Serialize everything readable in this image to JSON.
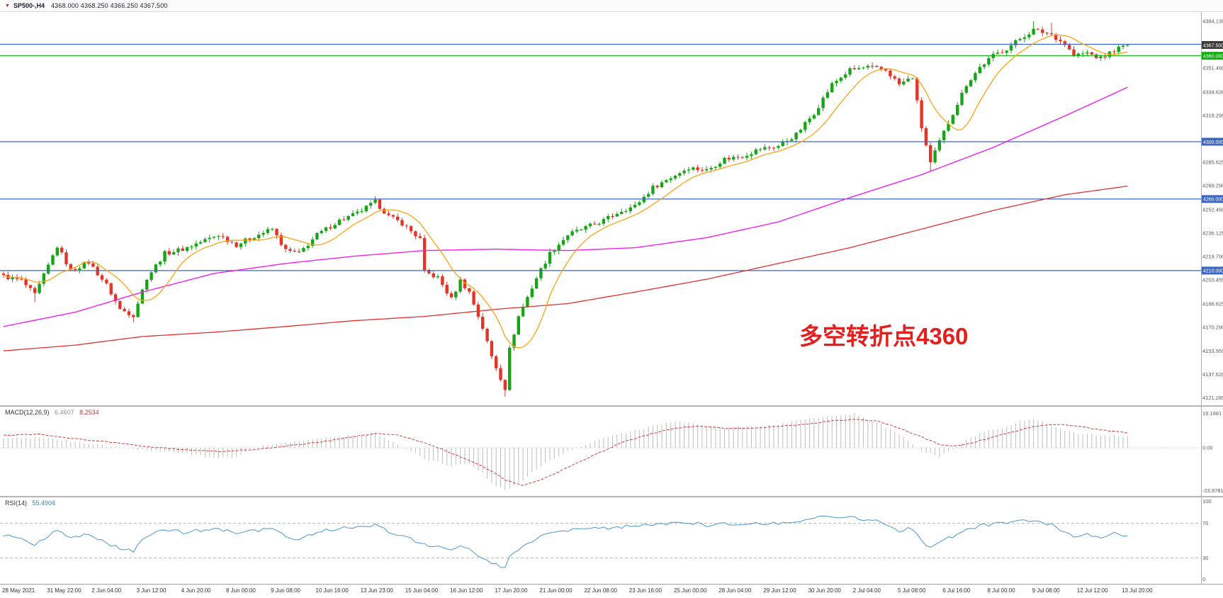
{
  "header": {
    "dropdown_icon": "▼",
    "symbol": "SP500-,H4",
    "ohlc": "4368.000 4368.250 4366.250 4367.500"
  },
  "annotation": {
    "text": "多空转折点4360",
    "color": "#e32020"
  },
  "chart_data": {
    "type": "candlestick",
    "title": "SP500- H4 candlestick chart with MACD and RSI",
    "symbol": "SP500-",
    "timeframe": "H4",
    "ohlc_current": {
      "open": 4368.0,
      "high": 4368.25,
      "low": 4366.25,
      "close": 4367.5
    },
    "price_axis": {
      "range": {
        "top": 4391.0,
        "bottom": 4116.0
      },
      "ticks": [
        4384.13,
        4351.46,
        4334.63,
        4318.295,
        4285.625,
        4269.29,
        4252.46,
        4236.125,
        4219.79,
        4203.455,
        4186.625,
        4170.29,
        4153.955,
        4137.62,
        4121.285
      ],
      "tick_labels": [
        "4384.130",
        "4351.460",
        "4334.630",
        "4318.295",
        "4285.625",
        "4269.290",
        "4252.460",
        "4236.125",
        "4219.790",
        "4203.455",
        "4186.625",
        "4170.290",
        "4153.955",
        "4137.620",
        "4121.285"
      ],
      "special_labels": [
        {
          "text": "4367.500",
          "price": 4367.5,
          "bg": "#3a3a3a"
        },
        {
          "text": "4360.000",
          "price": 4360.0,
          "bg": "#00b400"
        },
        {
          "text": "4300.000",
          "price": 4300.0,
          "bg": "#3a66c8"
        },
        {
          "text": "4260.000",
          "price": 4260.0,
          "bg": "#3a66c8"
        },
        {
          "text": "4210.000",
          "price": 4210.0,
          "bg": "#3a66c8"
        }
      ]
    },
    "levels": [
      {
        "price": 4368.0,
        "color": "#3a66c8"
      },
      {
        "price": 4360.0,
        "color": "#00b400"
      },
      {
        "price": 4300.0,
        "color": "#3a66c8"
      },
      {
        "price": 4260.0,
        "color": "#3a66c8"
      },
      {
        "price": 4210.0,
        "color": "#3a66c8"
      }
    ],
    "candles": {
      "count": 252,
      "up_color": "#17a517",
      "down_color": "#e33428",
      "noise": 1.6,
      "first_open": 4208
    },
    "price_path": [
      [
        0,
        4206
      ],
      [
        4,
        4203
      ],
      [
        7,
        4193
      ],
      [
        12,
        4227
      ],
      [
        15,
        4210
      ],
      [
        19,
        4216
      ],
      [
        23,
        4200
      ],
      [
        26,
        4183
      ],
      [
        29,
        4179
      ],
      [
        32,
        4205
      ],
      [
        36,
        4222
      ],
      [
        40,
        4225
      ],
      [
        44,
        4230
      ],
      [
        48,
        4235
      ],
      [
        52,
        4228
      ],
      [
        56,
        4234
      ],
      [
        60,
        4239
      ],
      [
        63,
        4224
      ],
      [
        66,
        4222
      ],
      [
        70,
        4235
      ],
      [
        75,
        4245
      ],
      [
        79,
        4250
      ],
      [
        83,
        4258
      ],
      [
        86,
        4248
      ],
      [
        89,
        4243
      ],
      [
        93,
        4232
      ],
      [
        94,
        4209
      ],
      [
        97,
        4205
      ],
      [
        100,
        4190
      ],
      [
        102,
        4203
      ],
      [
        104,
        4195
      ],
      [
        107,
        4170
      ],
      [
        109,
        4150
      ],
      [
        111,
        4135
      ],
      [
        112,
        4128
      ],
      [
        113,
        4155
      ],
      [
        115,
        4178
      ],
      [
        119,
        4205
      ],
      [
        122,
        4222
      ],
      [
        126,
        4235
      ],
      [
        130,
        4240
      ],
      [
        134,
        4245
      ],
      [
        138,
        4252
      ],
      [
        141,
        4255
      ],
      [
        145,
        4268
      ],
      [
        149,
        4275
      ],
      [
        153,
        4282
      ],
      [
        157,
        4280
      ],
      [
        161,
        4288
      ],
      [
        165,
        4290
      ],
      [
        169,
        4295
      ],
      [
        173,
        4297
      ],
      [
        177,
        4305
      ],
      [
        181,
        4320
      ],
      [
        185,
        4340
      ],
      [
        189,
        4350
      ],
      [
        193,
        4352
      ],
      [
        197,
        4350
      ],
      [
        200,
        4340
      ],
      [
        203,
        4345
      ],
      [
        205,
        4310
      ],
      [
        207,
        4285
      ],
      [
        209,
        4300
      ],
      [
        212,
        4320
      ],
      [
        215,
        4340
      ],
      [
        218,
        4352
      ],
      [
        221,
        4360
      ],
      [
        224,
        4365
      ],
      [
        227,
        4372
      ],
      [
        230,
        4378
      ],
      [
        234,
        4375
      ],
      [
        237,
        4368
      ],
      [
        239,
        4360
      ],
      [
        242,
        4362
      ],
      [
        245,
        4358
      ],
      [
        248,
        4364
      ],
      [
        251,
        4367.5
      ]
    ],
    "wick_overrides": {
      "7": {
        "low": 4188
      },
      "29": {
        "low": 4174
      },
      "83": {
        "high": 4262
      },
      "112": {
        "low": 4122
      },
      "207": {
        "low": 4279
      },
      "230": {
        "high": 4384.1
      },
      "234": {
        "high": 4383.0
      },
      "251": {
        "high": 4368.3,
        "low": 4366.2
      }
    },
    "ma_fast": {
      "name": "MA fast",
      "color": "#ffa216",
      "period": 10
    },
    "ma_medium": {
      "name": "MA medium",
      "color": "#ee22ee",
      "path": [
        [
          0,
          4171
        ],
        [
          16,
          4181
        ],
        [
          31,
          4195
        ],
        [
          47,
          4208
        ],
        [
          63,
          4215
        ],
        [
          78,
          4220
        ],
        [
          94,
          4224
        ],
        [
          110,
          4225
        ],
        [
          126,
          4224
        ],
        [
          141,
          4226
        ],
        [
          157,
          4233
        ],
        [
          173,
          4244
        ],
        [
          189,
          4261
        ],
        [
          205,
          4277
        ],
        [
          221,
          4296
        ],
        [
          237,
          4318
        ],
        [
          251,
          4338
        ]
      ]
    },
    "ma_slow": {
      "name": "MA slow",
      "color": "#e03030",
      "path": [
        [
          0,
          4154
        ],
        [
          16,
          4158
        ],
        [
          31,
          4164
        ],
        [
          47,
          4167
        ],
        [
          63,
          4171
        ],
        [
          78,
          4175
        ],
        [
          94,
          4178
        ],
        [
          110,
          4183
        ],
        [
          126,
          4187
        ],
        [
          141,
          4195
        ],
        [
          157,
          4204
        ],
        [
          173,
          4215
        ],
        [
          189,
          4226
        ],
        [
          205,
          4239
        ],
        [
          221,
          4252
        ],
        [
          237,
          4263
        ],
        [
          251,
          4269
        ]
      ]
    },
    "macd": {
      "label": "MACD(12,26,9)",
      "main": "6.4607",
      "signal": "8.2534",
      "range": [
        -27,
        23
      ],
      "hist_color": "#bdbdbd",
      "signal_color": "#d23f3f",
      "scale_labels": [
        {
          "text": "19.1681",
          "value": 19.1681
        },
        {
          "text": "0.00",
          "value": 0
        },
        {
          "text": "-23.9781",
          "value": -23.9781
        }
      ],
      "hist": [
        [
          0,
          5
        ],
        [
          8,
          6
        ],
        [
          16,
          3
        ],
        [
          24,
          1
        ],
        [
          31,
          -1
        ],
        [
          40,
          -3
        ],
        [
          48,
          -6
        ],
        [
          52,
          -5
        ],
        [
          56,
          0
        ],
        [
          63,
          3
        ],
        [
          70,
          5
        ],
        [
          78,
          7
        ],
        [
          83,
          8
        ],
        [
          88,
          2
        ],
        [
          94,
          -6
        ],
        [
          100,
          -10
        ],
        [
          104,
          -9
        ],
        [
          107,
          -14
        ],
        [
          109,
          -20
        ],
        [
          112,
          -24
        ],
        [
          116,
          -18
        ],
        [
          120,
          -10
        ],
        [
          126,
          -2
        ],
        [
          132,
          4
        ],
        [
          138,
          8
        ],
        [
          145,
          12
        ],
        [
          150,
          15
        ],
        [
          155,
          13
        ],
        [
          161,
          11
        ],
        [
          167,
          12
        ],
        [
          173,
          13
        ],
        [
          179,
          16
        ],
        [
          185,
          18
        ],
        [
          190,
          19.17
        ],
        [
          195,
          14
        ],
        [
          200,
          8
        ],
        [
          205,
          -2
        ],
        [
          209,
          -5
        ],
        [
          212,
          -1
        ],
        [
          215,
          4
        ],
        [
          218,
          8
        ],
        [
          221,
          10
        ],
        [
          224,
          12
        ],
        [
          227,
          15
        ],
        [
          230,
          16
        ],
        [
          234,
          13
        ],
        [
          237,
          10
        ],
        [
          240,
          8
        ],
        [
          245,
          7
        ],
        [
          251,
          6.46
        ]
      ],
      "signal_path": [
        [
          0,
          7
        ],
        [
          8,
          7.5
        ],
        [
          16,
          5
        ],
        [
          24,
          3
        ],
        [
          31,
          1
        ],
        [
          40,
          -1
        ],
        [
          48,
          -2
        ],
        [
          56,
          -1
        ],
        [
          63,
          1
        ],
        [
          70,
          3
        ],
        [
          78,
          6
        ],
        [
          83,
          8
        ],
        [
          88,
          7
        ],
        [
          94,
          3
        ],
        [
          100,
          -3
        ],
        [
          104,
          -7
        ],
        [
          109,
          -13
        ],
        [
          112,
          -18
        ],
        [
          116,
          -21
        ],
        [
          120,
          -18
        ],
        [
          126,
          -11
        ],
        [
          132,
          -4
        ],
        [
          138,
          3
        ],
        [
          145,
          8
        ],
        [
          150,
          11
        ],
        [
          155,
          12
        ],
        [
          161,
          11
        ],
        [
          167,
          11
        ],
        [
          173,
          12
        ],
        [
          179,
          13
        ],
        [
          185,
          15
        ],
        [
          190,
          16
        ],
        [
          195,
          15
        ],
        [
          200,
          11
        ],
        [
          205,
          6
        ],
        [
          209,
          2
        ],
        [
          212,
          1
        ],
        [
          215,
          2
        ],
        [
          218,
          4
        ],
        [
          221,
          6
        ],
        [
          224,
          8
        ],
        [
          227,
          10
        ],
        [
          230,
          12
        ],
        [
          234,
          13
        ],
        [
          237,
          13
        ],
        [
          240,
          12
        ],
        [
          245,
          10
        ],
        [
          251,
          8.25
        ]
      ]
    },
    "rsi": {
      "label": "RSI(14)",
      "value": "55.4904",
      "color": "#4b96d1",
      "range": [
        0,
        100
      ],
      "levels": [
        70,
        30
      ],
      "scale_labels": [
        {
          "text": "100",
          "value": 100
        },
        {
          "text": "70",
          "value": 70
        },
        {
          "text": "30",
          "value": 30
        },
        {
          "text": "0",
          "value": 0
        }
      ],
      "path": [
        [
          0,
          57
        ],
        [
          4,
          52
        ],
        [
          7,
          44
        ],
        [
          12,
          63
        ],
        [
          15,
          52
        ],
        [
          19,
          57
        ],
        [
          23,
          48
        ],
        [
          26,
          40
        ],
        [
          29,
          38
        ],
        [
          32,
          55
        ],
        [
          36,
          62
        ],
        [
          40,
          60
        ],
        [
          44,
          62
        ],
        [
          48,
          64
        ],
        [
          52,
          58
        ],
        [
          56,
          61
        ],
        [
          60,
          64
        ],
        [
          63,
          54
        ],
        [
          66,
          52
        ],
        [
          70,
          60
        ],
        [
          75,
          64
        ],
        [
          79,
          66
        ],
        [
          83,
          68
        ],
        [
          86,
          60
        ],
        [
          89,
          56
        ],
        [
          94,
          45
        ],
        [
          97,
          44
        ],
        [
          100,
          38
        ],
        [
          102,
          45
        ],
        [
          104,
          41
        ],
        [
          107,
          30
        ],
        [
          109,
          24
        ],
        [
          112,
          19
        ],
        [
          113,
          30
        ],
        [
          115,
          40
        ],
        [
          119,
          52
        ],
        [
          122,
          58
        ],
        [
          126,
          62
        ],
        [
          130,
          63
        ],
        [
          134,
          64
        ],
        [
          138,
          66
        ],
        [
          141,
          66
        ],
        [
          145,
          69
        ],
        [
          149,
          70
        ],
        [
          153,
          71
        ],
        [
          157,
          68
        ],
        [
          161,
          70
        ],
        [
          165,
          69
        ],
        [
          169,
          70
        ],
        [
          173,
          70
        ],
        [
          177,
          72
        ],
        [
          181,
          76
        ],
        [
          185,
          79
        ],
        [
          189,
          77
        ],
        [
          193,
          74
        ],
        [
          197,
          70
        ],
        [
          200,
          62
        ],
        [
          203,
          64
        ],
        [
          205,
          50
        ],
        [
          207,
          42
        ],
        [
          209,
          48
        ],
        [
          212,
          55
        ],
        [
          215,
          62
        ],
        [
          218,
          67
        ],
        [
          221,
          69
        ],
        [
          224,
          70
        ],
        [
          227,
          72
        ],
        [
          230,
          73
        ],
        [
          234,
          68
        ],
        [
          237,
          60
        ],
        [
          240,
          54
        ],
        [
          242,
          57
        ],
        [
          245,
          53
        ],
        [
          248,
          58
        ],
        [
          251,
          55.49
        ]
      ]
    },
    "time_axis": {
      "bars_per_label": 10,
      "labels": [
        "28 May 2021",
        "31 May 22:00",
        "2 Jun 04:00",
        "3 Jun 12:00",
        "4 Jun 20:00",
        "8 Jun 00:00",
        "9 Jun 08:00",
        "10 Jun 16:00",
        "13 Jun 23:00",
        "15 Jun 04:00",
        "16 Jun 12:00",
        "17 Jun 20:00",
        "21 Jun 00:00",
        "22 Jun 08:00",
        "23 Jun 16:00",
        "25 Jun 00:00",
        "28 Jun 04:00",
        "29 Jun 12:00",
        "30 Jun 20:00",
        "2 Jul 04:00",
        "5 Jul 08:00",
        "6 Jul 16:00",
        "8 Jul 00:00",
        "9 Jul 08:00",
        "12 Jul 12:00",
        "13 Jul 20:00"
      ]
    }
  }
}
